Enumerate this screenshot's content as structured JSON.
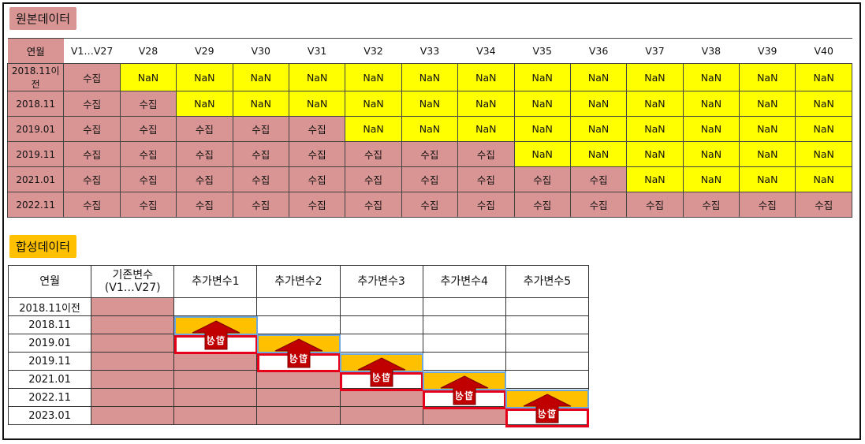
{
  "orig_label": "원본데이터",
  "syn_label": "합성데이터",
  "orig": {
    "headers": [
      "연월",
      "V1…V27",
      "V28",
      "V29",
      "V30",
      "V31",
      "V32",
      "V33",
      "V34",
      "V35",
      "V36",
      "V37",
      "V38",
      "V39",
      "V40"
    ],
    "rows": [
      {
        "label": "2018.11이전",
        "cells": [
          "수집",
          "NaN",
          "NaN",
          "NaN",
          "NaN",
          "NaN",
          "NaN",
          "NaN",
          "NaN",
          "NaN",
          "NaN",
          "NaN",
          "NaN",
          "NaN"
        ]
      },
      {
        "label": "2018.11",
        "cells": [
          "수집",
          "수집",
          "NaN",
          "NaN",
          "NaN",
          "NaN",
          "NaN",
          "NaN",
          "NaN",
          "NaN",
          "NaN",
          "NaN",
          "NaN",
          "NaN"
        ]
      },
      {
        "label": "2019.01",
        "cells": [
          "수집",
          "수집",
          "수집",
          "수집",
          "수집",
          "NaN",
          "NaN",
          "NaN",
          "NaN",
          "NaN",
          "NaN",
          "NaN",
          "NaN",
          "NaN"
        ]
      },
      {
        "label": "2019.11",
        "cells": [
          "수집",
          "수집",
          "수집",
          "수집",
          "수집",
          "수집",
          "수집",
          "수집",
          "NaN",
          "NaN",
          "NaN",
          "NaN",
          "NaN",
          "NaN"
        ]
      },
      {
        "label": "2021.01",
        "cells": [
          "수집",
          "수집",
          "수집",
          "수집",
          "수집",
          "수집",
          "수집",
          "수집",
          "수집",
          "수집",
          "NaN",
          "NaN",
          "NaN",
          "NaN"
        ]
      },
      {
        "label": "2022.11",
        "cells": [
          "수집",
          "수집",
          "수집",
          "수집",
          "수집",
          "수집",
          "수집",
          "수집",
          "수집",
          "수집",
          "수집",
          "수집",
          "수집",
          "수집"
        ]
      }
    ]
  },
  "syn": {
    "headers": [
      "연월",
      "기존변수\n(V1…V27)",
      "추가변수1",
      "추가변수2",
      "추가변수3",
      "추가변수4",
      "추가변수5"
    ],
    "rows": [
      "2018.11이전",
      "2018.11",
      "2019.01",
      "2019.11",
      "2021.01",
      "2022.11",
      "2023.01"
    ],
    "arrow_text": "합성"
  }
}
